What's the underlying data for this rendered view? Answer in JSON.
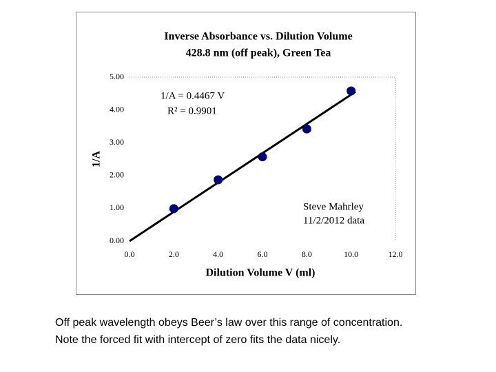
{
  "chart_data": {
    "type": "scatter",
    "title": "Inverse Absorbance vs. Dilution Volume",
    "subtitle": "428.8 nm (off peak), Green Tea",
    "x_label": "Dilution Volume V (ml)",
    "y_label": "1/A",
    "x": [
      2,
      4,
      6,
      8,
      10
    ],
    "values": [
      0.99,
      1.87,
      2.57,
      3.42,
      4.58
    ],
    "color": "#000080",
    "trendline": {
      "x": [
        0,
        10.2
      ],
      "values": [
        0,
        4.556
      ],
      "color": "#000000"
    },
    "xlim": [
      0,
      12
    ],
    "ylim": [
      0,
      5
    ],
    "xticks": [
      {
        "value": 0,
        "label": "0.0"
      },
      {
        "value": 2,
        "label": "2.0"
      },
      {
        "value": 4,
        "label": "4.0"
      },
      {
        "value": 6,
        "label": "6.0"
      },
      {
        "value": 8,
        "label": "8.0"
      },
      {
        "value": 10,
        "label": "10.0"
      },
      {
        "value": 12,
        "label": "12.0"
      }
    ],
    "yticks": [
      {
        "value": 0,
        "label": "0.00"
      },
      {
        "value": 1,
        "label": "1.00"
      },
      {
        "value": 2,
        "label": "2.00"
      },
      {
        "value": 3,
        "label": "3.00"
      },
      {
        "value": 4,
        "label": "4.00"
      },
      {
        "value": 5,
        "label": "5.00"
      }
    ],
    "annotations": [
      "1/A = 0.4467 V",
      "R² = 0.9901",
      "Steve Mahrley",
      "11/2/2012 data"
    ]
  },
  "caption": [
    "Off peak wavelength obeys Beer’s law over this range of concentration.",
    "Note the forced fit with intercept of zero fits the data nicely."
  ]
}
